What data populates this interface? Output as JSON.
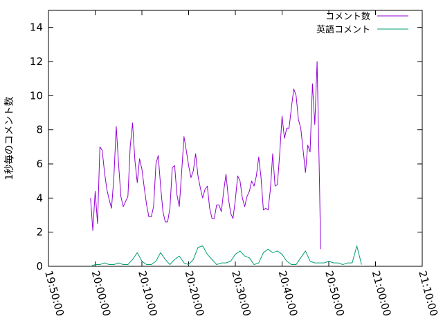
{
  "chart_data": {
    "type": "line",
    "title": "",
    "xlabel": "",
    "ylabel": "1秒毎のコメント数",
    "xlim": [
      "19:50:00",
      "21:10:00"
    ],
    "ylim": [
      0,
      15
    ],
    "x_ticks": [
      "19:50:00",
      "20:00:00",
      "20:10:00",
      "20:20:00",
      "20:30:00",
      "20:40:00",
      "20:50:00",
      "21:00:00",
      "21:10:00"
    ],
    "y_ticks": [
      0,
      2,
      4,
      6,
      8,
      10,
      12,
      14
    ],
    "grid": false,
    "legend_position": "top-right",
    "series": [
      {
        "name": "コメント数",
        "color": "#9400d3",
        "points": [
          [
            "19:59:00",
            4.0
          ],
          [
            "19:59:30",
            2.1
          ],
          [
            "20:00:00",
            4.4
          ],
          [
            "20:00:30",
            2.5
          ],
          [
            "20:01:00",
            7.0
          ],
          [
            "20:01:30",
            6.8
          ],
          [
            "20:02:00",
            5.5
          ],
          [
            "20:02:30",
            4.5
          ],
          [
            "20:03:00",
            3.9
          ],
          [
            "20:03:30",
            3.4
          ],
          [
            "20:04:00",
            5.2
          ],
          [
            "20:04:30",
            8.2
          ],
          [
            "20:05:00",
            6.0
          ],
          [
            "20:05:30",
            4.1
          ],
          [
            "20:06:00",
            3.5
          ],
          [
            "20:06:30",
            3.8
          ],
          [
            "20:07:00",
            4.1
          ],
          [
            "20:07:30",
            7.0
          ],
          [
            "20:08:00",
            8.4
          ],
          [
            "20:08:30",
            6.2
          ],
          [
            "20:09:00",
            4.9
          ],
          [
            "20:09:30",
            6.3
          ],
          [
            "20:10:00",
            5.7
          ],
          [
            "20:10:30",
            4.6
          ],
          [
            "20:11:00",
            3.6
          ],
          [
            "20:11:30",
            2.9
          ],
          [
            "20:12:00",
            2.9
          ],
          [
            "20:12:30",
            3.5
          ],
          [
            "20:13:00",
            6.0
          ],
          [
            "20:13:30",
            6.5
          ],
          [
            "20:14:00",
            4.7
          ],
          [
            "20:14:30",
            3.2
          ],
          [
            "20:15:00",
            2.6
          ],
          [
            "20:15:30",
            2.6
          ],
          [
            "20:16:00",
            3.4
          ],
          [
            "20:16:30",
            5.8
          ],
          [
            "20:17:00",
            5.9
          ],
          [
            "20:17:30",
            4.2
          ],
          [
            "20:18:00",
            3.5
          ],
          [
            "20:18:30",
            5.5
          ],
          [
            "20:19:00",
            7.6
          ],
          [
            "20:19:30",
            6.8
          ],
          [
            "20:20:00",
            5.9
          ],
          [
            "20:20:30",
            5.2
          ],
          [
            "20:21:00",
            5.6
          ],
          [
            "20:21:30",
            6.6
          ],
          [
            "20:22:00",
            5.3
          ],
          [
            "20:22:30",
            4.6
          ],
          [
            "20:23:00",
            4.0
          ],
          [
            "20:23:30",
            4.5
          ],
          [
            "20:24:00",
            4.7
          ],
          [
            "20:24:30",
            3.4
          ],
          [
            "20:25:00",
            2.8
          ],
          [
            "20:25:30",
            2.8
          ],
          [
            "20:26:00",
            3.6
          ],
          [
            "20:26:30",
            3.6
          ],
          [
            "20:27:00",
            3.2
          ],
          [
            "20:27:30",
            4.4
          ],
          [
            "20:28:00",
            5.4
          ],
          [
            "20:28:30",
            4.0
          ],
          [
            "20:29:00",
            3.1
          ],
          [
            "20:29:30",
            2.8
          ],
          [
            "20:30:00",
            3.9
          ],
          [
            "20:30:30",
            5.3
          ],
          [
            "20:31:00",
            5.0
          ],
          [
            "20:31:30",
            4.0
          ],
          [
            "20:32:00",
            3.5
          ],
          [
            "20:32:30",
            4.1
          ],
          [
            "20:33:00",
            4.4
          ],
          [
            "20:33:30",
            5.0
          ],
          [
            "20:34:00",
            4.7
          ],
          [
            "20:34:30",
            5.3
          ],
          [
            "20:35:00",
            6.4
          ],
          [
            "20:35:30",
            5.2
          ],
          [
            "20:36:00",
            3.3
          ],
          [
            "20:36:30",
            3.4
          ],
          [
            "20:37:00",
            3.3
          ],
          [
            "20:37:30",
            4.5
          ],
          [
            "20:38:00",
            6.6
          ],
          [
            "20:38:30",
            4.7
          ],
          [
            "20:39:00",
            4.8
          ],
          [
            "20:39:30",
            6.6
          ],
          [
            "20:40:00",
            8.8
          ],
          [
            "20:40:30",
            7.5
          ],
          [
            "20:41:00",
            8.1
          ],
          [
            "20:41:30",
            8.1
          ],
          [
            "20:42:00",
            9.3
          ],
          [
            "20:42:30",
            10.4
          ],
          [
            "20:43:00",
            10.0
          ],
          [
            "20:43:30",
            8.6
          ],
          [
            "20:44:00",
            8.1
          ],
          [
            "20:44:30",
            6.8
          ],
          [
            "20:45:00",
            5.5
          ],
          [
            "20:45:30",
            7.1
          ],
          [
            "20:46:00",
            6.7
          ],
          [
            "20:46:30",
            10.7
          ],
          [
            "20:47:00",
            8.3
          ],
          [
            "20:47:30",
            12.0
          ],
          [
            "20:48:00",
            5.1
          ],
          [
            "20:48:15",
            1.0
          ]
        ]
      },
      {
        "name": "英語コメント",
        "color": "#009e73",
        "points": [
          [
            "19:59:00",
            0.0
          ],
          [
            "20:00:00",
            0.1
          ],
          [
            "20:01:00",
            0.1
          ],
          [
            "20:02:00",
            0.2
          ],
          [
            "20:03:00",
            0.1
          ],
          [
            "20:04:00",
            0.1
          ],
          [
            "20:05:00",
            0.2
          ],
          [
            "20:06:00",
            0.1
          ],
          [
            "20:07:00",
            0.1
          ],
          [
            "20:08:00",
            0.4
          ],
          [
            "20:09:00",
            0.8
          ],
          [
            "20:10:00",
            0.3
          ],
          [
            "20:11:00",
            0.1
          ],
          [
            "20:12:00",
            0.1
          ],
          [
            "20:13:00",
            0.3
          ],
          [
            "20:14:00",
            0.8
          ],
          [
            "20:15:00",
            0.4
          ],
          [
            "20:16:00",
            0.1
          ],
          [
            "20:17:00",
            0.4
          ],
          [
            "20:18:00",
            0.6
          ],
          [
            "20:19:00",
            0.2
          ],
          [
            "20:20:00",
            0.1
          ],
          [
            "20:21:00",
            0.4
          ],
          [
            "20:22:00",
            1.1
          ],
          [
            "20:23:00",
            1.2
          ],
          [
            "20:24:00",
            0.7
          ],
          [
            "20:25:00",
            0.4
          ],
          [
            "20:26:00",
            0.1
          ],
          [
            "20:27:00",
            0.2
          ],
          [
            "20:28:00",
            0.2
          ],
          [
            "20:29:00",
            0.3
          ],
          [
            "20:30:00",
            0.7
          ],
          [
            "20:31:00",
            0.9
          ],
          [
            "20:32:00",
            0.6
          ],
          [
            "20:33:00",
            0.5
          ],
          [
            "20:34:00",
            0.1
          ],
          [
            "20:35:00",
            0.2
          ],
          [
            "20:36:00",
            0.8
          ],
          [
            "20:37:00",
            1.0
          ],
          [
            "20:38:00",
            0.8
          ],
          [
            "20:39:00",
            0.9
          ],
          [
            "20:40:00",
            0.7
          ],
          [
            "20:41:00",
            0.3
          ],
          [
            "20:42:00",
            0.1
          ],
          [
            "20:43:00",
            0.1
          ],
          [
            "20:44:00",
            0.5
          ],
          [
            "20:45:00",
            0.9
          ],
          [
            "20:46:00",
            0.3
          ],
          [
            "20:47:00",
            0.2
          ],
          [
            "20:48:00",
            0.2
          ],
          [
            "20:49:00",
            0.2
          ],
          [
            "20:50:00",
            0.3
          ],
          [
            "20:51:00",
            0.2
          ],
          [
            "20:52:00",
            0.2
          ],
          [
            "20:53:00",
            0.1
          ],
          [
            "20:54:00",
            0.2
          ],
          [
            "20:55:00",
            0.2
          ],
          [
            "20:56:00",
            1.2
          ],
          [
            "20:57:00",
            0.1
          ]
        ]
      }
    ]
  }
}
